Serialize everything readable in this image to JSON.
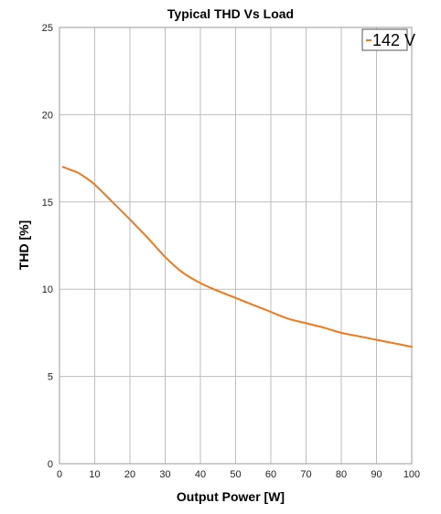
{
  "chart_data": {
    "type": "line",
    "title": "Typical THD Vs Load",
    "xlabel": "Output Power [W]",
    "ylabel": "THD [%]",
    "xlim": [
      0,
      100
    ],
    "ylim": [
      0,
      25
    ],
    "xticks": [
      0,
      10,
      20,
      30,
      40,
      50,
      60,
      70,
      80,
      90,
      100
    ],
    "yticks": [
      0,
      5,
      10,
      15,
      20,
      25
    ],
    "grid": true,
    "legend_position": "top-right",
    "series": [
      {
        "name": "142 V",
        "color": "#f07818",
        "x": [
          1,
          3,
          5,
          7,
          10,
          15,
          20,
          25,
          30,
          35,
          40,
          45,
          50,
          55,
          60,
          65,
          70,
          75,
          80,
          85,
          90,
          95,
          100
        ],
        "y": [
          17.0,
          16.85,
          16.7,
          16.45,
          16.0,
          15.0,
          14.0,
          12.95,
          11.85,
          10.95,
          10.35,
          9.9,
          9.5,
          9.1,
          8.7,
          8.3,
          8.05,
          7.8,
          7.5,
          7.3,
          7.1,
          6.9,
          6.7
        ]
      }
    ]
  }
}
